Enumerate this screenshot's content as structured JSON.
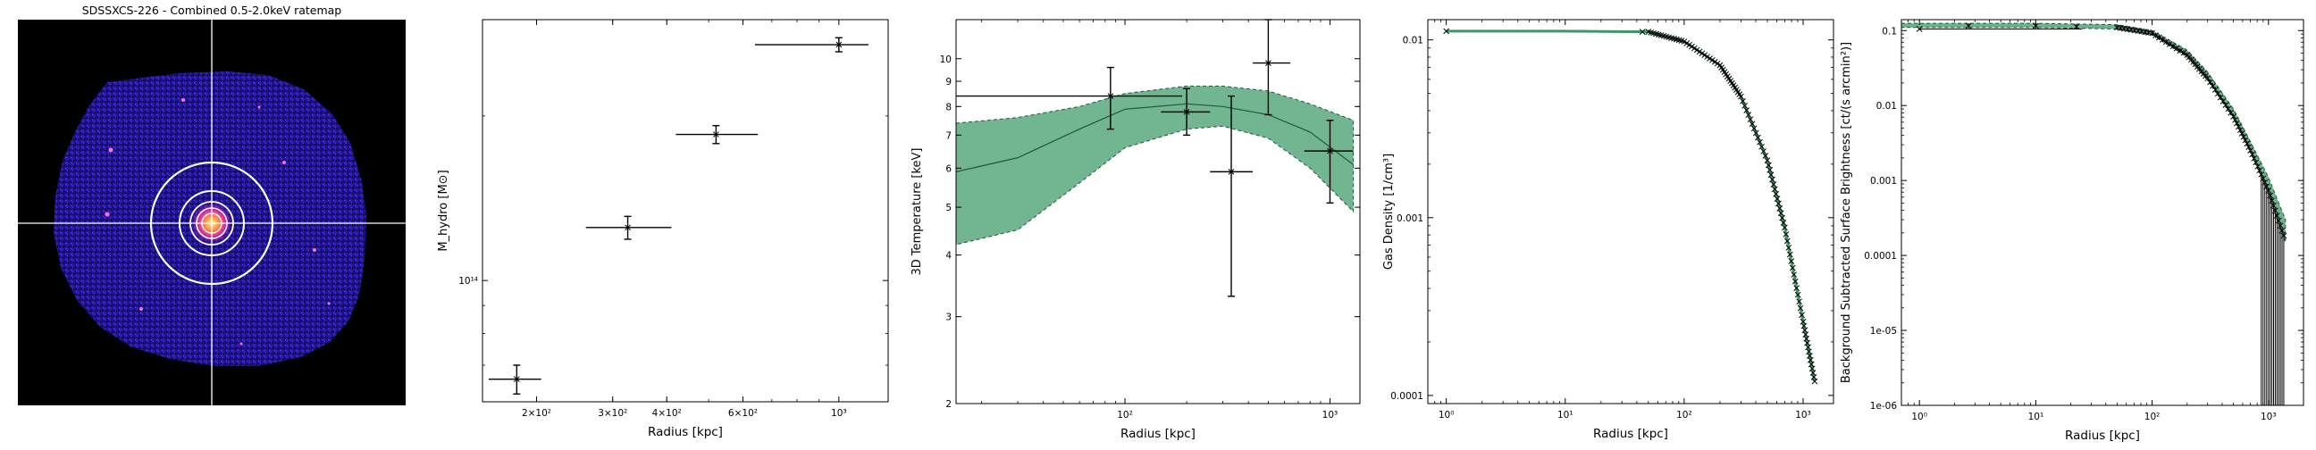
{
  "image_panel": {
    "title": "SDSSXCS-226 - Combined 0.5-2.0keV ratemap"
  },
  "chart_data": [
    {
      "type": "scatter",
      "xlabel": "Radius [kpc]",
      "ylabel": "M_hydro [M⊙]",
      "x_scale": "log",
      "y_scale": "log",
      "xlim": [
        150,
        1300
      ],
      "ylim": [
        60000000000000,
        300000000000000
      ],
      "x_ticks": [
        {
          "v": 200,
          "label": "2×10²"
        },
        {
          "v": 300,
          "label": "3×10²"
        },
        {
          "v": 400,
          "label": "4×10²"
        },
        {
          "v": 600,
          "label": "6×10²"
        },
        {
          "v": 1000,
          "label": "10³"
        }
      ],
      "y_ticks": [
        {
          "v": 100000000000000,
          "label": "10¹⁴"
        }
      ],
      "points": [
        {
          "x": 180,
          "xerr": [
            155,
            205
          ],
          "y": 66000000000000,
          "yerr": [
            62000000000000,
            70000000000000
          ]
        },
        {
          "x": 325,
          "xerr": [
            260,
            410
          ],
          "y": 125000000000000,
          "yerr": [
            119000000000000,
            131000000000000
          ]
        },
        {
          "x": 520,
          "xerr": [
            420,
            650
          ],
          "y": 185000000000000,
          "yerr": [
            178000000000000,
            192000000000000
          ]
        },
        {
          "x": 1000,
          "xerr": [
            640,
            1170
          ],
          "y": 270000000000000,
          "yerr": [
            262000000000000,
            278000000000000
          ]
        }
      ]
    },
    {
      "type": "scatter",
      "xlabel": "Radius [kpc]",
      "ylabel": "3D Temperature [keV]",
      "x_scale": "log",
      "y_scale": "log",
      "xlim": [
        15,
        1400
      ],
      "ylim": [
        2,
        12
      ],
      "x_ticks": [
        {
          "v": 100,
          "label": "10²"
        },
        {
          "v": 1000,
          "label": "10³"
        }
      ],
      "y_ticks": [
        {
          "v": 2,
          "label": "2"
        },
        {
          "v": 3,
          "label": "3"
        },
        {
          "v": 4,
          "label": "4"
        },
        {
          "v": 5,
          "label": "5"
        },
        {
          "v": 6,
          "label": "6"
        },
        {
          "v": 7,
          "label": "7"
        },
        {
          "v": 8,
          "label": "8"
        },
        {
          "v": 9,
          "label": "9"
        },
        {
          "v": 10,
          "label": "10"
        }
      ],
      "points": [
        {
          "x": 85,
          "xerr": [
            15,
            190
          ],
          "y": 8.4,
          "yerr": [
            7.2,
            9.6
          ]
        },
        {
          "x": 200,
          "xerr": [
            150,
            260
          ],
          "y": 7.8,
          "yerr": [
            7.0,
            8.7
          ]
        },
        {
          "x": 330,
          "xerr": [
            260,
            420
          ],
          "y": 5.9,
          "yerr": [
            3.3,
            8.4
          ]
        },
        {
          "x": 500,
          "xerr": [
            420,
            640
          ],
          "y": 9.8,
          "yerr": [
            7.7,
            12.0
          ]
        },
        {
          "x": 1000,
          "xerr": [
            750,
            1300
          ],
          "y": 6.5,
          "yerr": [
            5.1,
            7.5
          ]
        }
      ],
      "model": {
        "x": [
          15,
          30,
          60,
          100,
          200,
          300,
          500,
          800,
          1300
        ],
        "median": [
          5.9,
          6.3,
          7.2,
          7.9,
          8.1,
          8.0,
          7.7,
          7.1,
          6.1
        ],
        "lower": [
          4.2,
          4.5,
          5.6,
          6.6,
          7.2,
          7.3,
          6.9,
          6.0,
          4.9
        ],
        "upper": [
          7.4,
          7.6,
          8.0,
          8.5,
          8.8,
          8.8,
          8.6,
          8.1,
          7.5
        ],
        "color": "#3b9966"
      }
    },
    {
      "type": "scatter",
      "xlabel": "Radius [kpc]",
      "ylabel": "Gas Density [1/cm³]",
      "x_scale": "log",
      "y_scale": "log",
      "xlim": [
        0.7,
        1800
      ],
      "ylim": [
        9e-05,
        0.013
      ],
      "x_ticks": [
        {
          "v": 1,
          "label": "10⁰"
        },
        {
          "v": 10,
          "label": "10¹"
        },
        {
          "v": 100,
          "label": "10²"
        },
        {
          "v": 1000,
          "label": "10³"
        }
      ],
      "y_ticks": [
        {
          "v": 0.01,
          "label": "0.01"
        },
        {
          "v": 0.001,
          "label": "0.001"
        },
        {
          "v": 0.0001,
          "label": "0.0001"
        }
      ],
      "curve_x": [
        1,
        10,
        50,
        100,
        200,
        300,
        500,
        700,
        1000,
        1250
      ],
      "curve_y": [
        0.0112,
        0.0112,
        0.0111,
        0.0098,
        0.0072,
        0.0048,
        0.0021,
        0.00088,
        0.00026,
        0.00012
      ],
      "color": "#3b9966"
    },
    {
      "type": "scatter",
      "xlabel": "Radius [kpc]",
      "ylabel": "Background Subtracted Surface Brightness [ct/(s arcmin²)]",
      "x_scale": "log",
      "y_scale": "log",
      "xlim": [
        0.7,
        2000
      ],
      "ylim": [
        1e-06,
        0.14
      ],
      "x_ticks": [
        {
          "v": 1,
          "label": "10⁰"
        },
        {
          "v": 10,
          "label": "10¹"
        },
        {
          "v": 100,
          "label": "10²"
        },
        {
          "v": 1000,
          "label": "10³"
        }
      ],
      "y_ticks": [
        {
          "v": 0.1,
          "label": "0.1"
        },
        {
          "v": 0.01,
          "label": "0.01"
        },
        {
          "v": 0.001,
          "label": "0.001"
        },
        {
          "v": 0.0001,
          "label": "0.0001"
        },
        {
          "v": 1e-05,
          "label": "1e-05"
        },
        {
          "v": 1e-06,
          "label": "1e-06"
        }
      ],
      "model_x": [
        0.7,
        10,
        50,
        100,
        200,
        300,
        500,
        700,
        1000,
        1400
      ],
      "model_upper": [
        0.125,
        0.125,
        0.12,
        0.1,
        0.055,
        0.028,
        0.009,
        0.0033,
        0.0011,
        0.0003
      ],
      "model_lower": [
        0.11,
        0.11,
        0.105,
        0.088,
        0.045,
        0.022,
        0.0068,
        0.0024,
        0.0007,
        0.00015
      ],
      "color": "#3b9966"
    }
  ]
}
